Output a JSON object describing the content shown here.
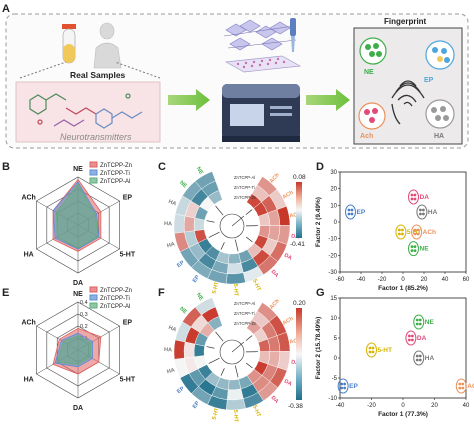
{
  "panel_letters": {
    "a": "A",
    "b": "B",
    "c": "C",
    "d": "D",
    "e": "E",
    "f": "F",
    "g": "G"
  },
  "panel_a": {
    "real_samples_label": "Real Samples",
    "neurotransmitters_label": "Neurotransmitters",
    "fingerprint_label": "Fingerprint",
    "cluster_labels": [
      "NE",
      "EP",
      "Ach",
      "HA"
    ],
    "cluster_colors": [
      "#3fae4a",
      "#4ea7dc",
      "#e9925a",
      "#9a9a9a"
    ]
  },
  "radar_legend": [
    "ZnTCPP-Zn",
    "ZnTCPP-Ti",
    "ZnTCPP-Al"
  ],
  "radar_colors": [
    "#e0605f",
    "#5b8fd6",
    "#5fae7c"
  ],
  "radar_axes": [
    "NE",
    "EP",
    "5-HT",
    "DA",
    "HA",
    "ACh"
  ],
  "radar_b": {
    "ticks": [],
    "series": [
      {
        "values": [
          0.95,
          0.55,
          0.55,
          0.55,
          0.6,
          0.6
        ]
      },
      {
        "values": [
          0.9,
          0.45,
          0.5,
          0.5,
          0.55,
          0.6
        ]
      },
      {
        "values": [
          0.85,
          0.42,
          0.48,
          0.48,
          0.5,
          0.52
        ]
      }
    ]
  },
  "radar_e": {
    "ticks": [
      "0.1",
      "0.2",
      "0.3",
      "0.4"
    ],
    "series": [
      {
        "values": [
          0.45,
          0.55,
          0.5,
          0.5,
          0.6,
          0.45
        ]
      },
      {
        "values": [
          0.35,
          0.35,
          0.35,
          0.35,
          0.55,
          0.4
        ]
      },
      {
        "values": [
          0.3,
          0.3,
          0.3,
          0.3,
          0.5,
          0.35
        ]
      }
    ]
  },
  "heatmap_c": {
    "cb_max": "0.08",
    "cb_min": "-0.41"
  },
  "heatmap_f": {
    "cb_max": "0.20",
    "cb_min": "-0.38"
  },
  "heat_ring_labels_c": [
    "ACh",
    "ACh",
    "ACh",
    "DA",
    "DA",
    "DA",
    "5-HT",
    "5-HT",
    "5-HT",
    "EP",
    "EP",
    "HA",
    "HA",
    "HA",
    "NE",
    "NE"
  ],
  "heat_ring_labels_f": [
    "ACh",
    "ACh",
    "ACh",
    "DA",
    "DA",
    "DA",
    "5-HT",
    "5-HT",
    "5-HT",
    "EP",
    "EP",
    "HA",
    "HA",
    "HA",
    "NE",
    "NE"
  ],
  "heat_sensor_labels": [
    "ZnTCPP-Zn",
    "ZnTCPP-Ti",
    "ZnTCPP-Al"
  ],
  "ring_label_colors": {
    "ACh": "#e9925a",
    "DA": "#e24a79",
    "5-HT": "#d7b400",
    "EP": "#4a7fc8",
    "HA": "#777777",
    "NE": "#3fae4a"
  },
  "chart_data": [
    {
      "type": "scatter",
      "panel": "D",
      "xlabel": "Factor 1 (85.2%)",
      "ylabel": "Factor 2 (9.49%)",
      "xlim": [
        -60,
        60
      ],
      "ylim": [
        -30,
        30
      ],
      "xticks": [
        "-60",
        "-40",
        "-20",
        "0",
        "20",
        "40",
        "60"
      ],
      "yticks": [
        "-30",
        "-20",
        "-10",
        "0",
        "10",
        "20",
        "30"
      ],
      "clusters": [
        {
          "name": "EP",
          "x": -50,
          "y": 6,
          "color": "#4a7fc8"
        },
        {
          "name": "DA",
          "x": 10,
          "y": 15,
          "color": "#e24a79"
        },
        {
          "name": "HA",
          "x": 18,
          "y": 6,
          "color": "#777777"
        },
        {
          "name": "5-HT",
          "x": -2,
          "y": -6,
          "color": "#d7b400"
        },
        {
          "name": "ACh",
          "x": 13,
          "y": -6,
          "color": "#e9925a"
        },
        {
          "name": "NE",
          "x": 10,
          "y": -16,
          "color": "#3fae4a"
        }
      ]
    },
    {
      "type": "scatter",
      "panel": "G",
      "xlabel": "Factor 1 (77.3%)",
      "ylabel": "Factor 2 (15.78.49%)",
      "xlim": [
        -40,
        40
      ],
      "ylim": [
        -10,
        15
      ],
      "xticks": [
        "-40",
        "-20",
        "0",
        "20",
        "40"
      ],
      "yticks": [
        "-10",
        "-5",
        "0",
        "5",
        "10",
        "15"
      ],
      "clusters": [
        {
          "name": "NE",
          "x": 10,
          "y": 9,
          "color": "#3fae4a"
        },
        {
          "name": "DA",
          "x": 5,
          "y": 5,
          "color": "#e24a79"
        },
        {
          "name": "5-HT",
          "x": -20,
          "y": 2,
          "color": "#d7b400"
        },
        {
          "name": "HA",
          "x": 10,
          "y": 0,
          "color": "#777777"
        },
        {
          "name": "EP",
          "x": -38,
          "y": -7,
          "color": "#4a7fc8"
        },
        {
          "name": "ACh",
          "x": 37,
          "y": -7,
          "color": "#e9925a"
        }
      ]
    }
  ]
}
